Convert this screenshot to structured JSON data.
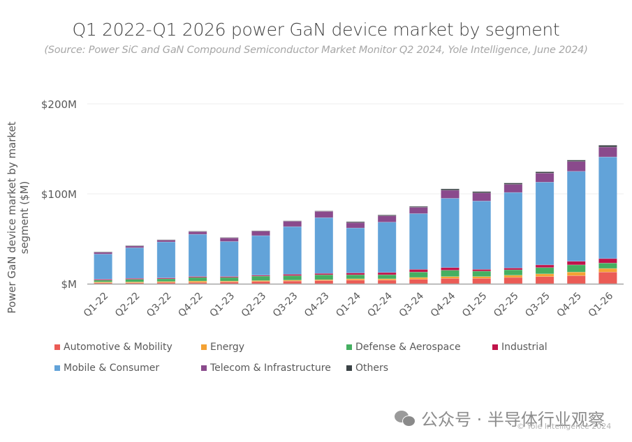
{
  "chart_data": {
    "type": "bar",
    "stacked": true,
    "title": "Q1 2022-Q1 2026 power GaN device market by segment",
    "subtitle": "(Source: Power SiC and GaN Compound Semiconductor Market Monitor Q2 2024, Yole Intelligence, June 2024)",
    "xlabel": "",
    "ylabel": "Power GaN device market by market segment ($M)",
    "ylim": [
      0,
      200
    ],
    "yticks": [
      0,
      100,
      200
    ],
    "ytick_labels": [
      "$M",
      "$100M",
      "$200M"
    ],
    "grid": true,
    "legend_position": "bottom",
    "categories": [
      "Q1-22",
      "Q2-22",
      "Q3-22",
      "Q4-22",
      "Q1-23",
      "Q2-23",
      "Q3-23",
      "Q4-23",
      "Q1-24",
      "Q2-24",
      "Q3-24",
      "Q4-24",
      "Q1-25",
      "Q2-25",
      "Q3-25",
      "Q4-25",
      "Q1-26"
    ],
    "series": [
      {
        "name": "Automotive & Mobility",
        "color": "#EB5B55",
        "values": [
          1,
          1,
          1.5,
          1.5,
          2,
          2.5,
          3,
          3.5,
          4,
          4,
          5,
          6,
          6,
          7,
          8,
          9,
          13
        ]
      },
      {
        "name": "Energy",
        "color": "#F4A234",
        "values": [
          1,
          1,
          1,
          1.5,
          1,
          1,
          1,
          1,
          1.5,
          1.5,
          2,
          2,
          2,
          2.5,
          3,
          4,
          4
        ]
      },
      {
        "name": "Defense & Aerospace",
        "color": "#45AF61",
        "values": [
          2,
          3,
          3,
          4,
          4,
          5,
          5,
          5.5,
          4.5,
          4.5,
          6,
          7,
          6,
          6,
          7,
          8,
          6
        ]
      },
      {
        "name": "Industrial",
        "color": "#C0134A",
        "values": [
          1,
          1,
          1,
          1,
          1,
          1,
          1.5,
          1.5,
          2,
          2.5,
          3,
          3,
          2,
          2,
          3,
          4,
          5
        ]
      },
      {
        "name": "Mobile & Consumer",
        "color": "#62A3D9",
        "values": [
          28,
          34,
          40,
          47,
          39,
          44,
          53,
          62,
          50,
          56,
          62,
          77,
          76,
          84,
          92,
          100,
          113
        ]
      },
      {
        "name": "Telecom & Infrastructure",
        "color": "#8A4A8C",
        "values": [
          2,
          2,
          2,
          3,
          4,
          5,
          6,
          7,
          6,
          7,
          7,
          9,
          9,
          9,
          10,
          11,
          11
        ]
      },
      {
        "name": "Others",
        "color": "#3B4346",
        "values": [
          0.5,
          0.5,
          0.5,
          0.5,
          0.5,
          0.5,
          0.5,
          0.5,
          1,
          1,
          1,
          1.5,
          1.5,
          1.5,
          1.5,
          1.5,
          2
        ]
      }
    ]
  },
  "legend": [
    {
      "label": "Automotive & Mobility",
      "color": "#EB5B55"
    },
    {
      "label": "Energy",
      "color": "#F4A234"
    },
    {
      "label": "Defense & Aerospace",
      "color": "#45AF61"
    },
    {
      "label": "Industrial",
      "color": "#C0134A"
    },
    {
      "label": "Mobile & Consumer",
      "color": "#62A3D9"
    },
    {
      "label": "Telecom & Infrastructure",
      "color": "#8A4A8C"
    },
    {
      "label": "Others",
      "color": "#3B4346"
    }
  ],
  "watermark": {
    "icon": "wechat-icon",
    "text": "公众号 · 半导体行业观察"
  },
  "copyright": "© Yole Intelligence 2024"
}
